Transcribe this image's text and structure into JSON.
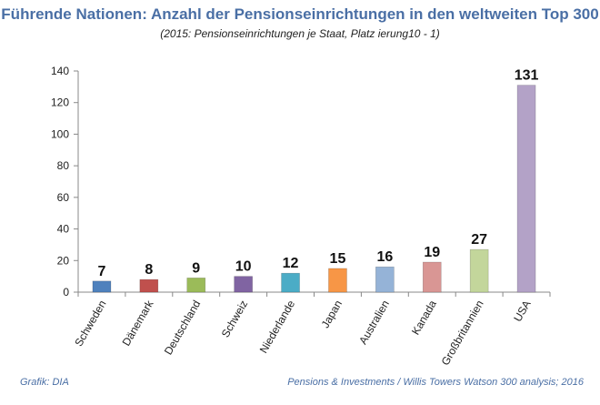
{
  "header": {
    "title": "Führende Nationen: Anzahl der Pensionseinrichtungen in den weltweiten Top 300",
    "subtitle": "(2015: Pensionseinrichtungen je Staat, Platz ierung10 - 1)"
  },
  "footer": {
    "left": "Grafik: DIA",
    "right": "Pensions & Investments / Willis Towers Watson 300 analysis; 2016"
  },
  "chart_data": {
    "type": "bar",
    "categories": [
      "Schweden",
      "Dänemark",
      "Deutschland",
      "Schweiz",
      "Niederlande",
      "Japan",
      "Australien",
      "Kanada",
      "Großbritannien",
      "USA"
    ],
    "values": [
      7,
      8,
      9,
      10,
      12,
      15,
      16,
      19,
      27,
      131
    ],
    "colors": [
      "#4f81bd",
      "#c0504d",
      "#9bbb59",
      "#8064a2",
      "#4bacc6",
      "#f79646",
      "#95b3d7",
      "#d99694",
      "#c3d69b",
      "#b3a2c7"
    ],
    "ylim": [
      0,
      140
    ],
    "yticks": [
      0,
      20,
      40,
      60,
      80,
      100,
      120,
      140
    ],
    "grid": false,
    "title": "Führende Nationen: Anzahl der Pensionseinrichtungen in den weltweiten Top 300",
    "subtitle": "(2015: Pensionseinrichtungen je Staat, Platz ierung10 - 1)",
    "xlabel": "",
    "ylabel": ""
  }
}
